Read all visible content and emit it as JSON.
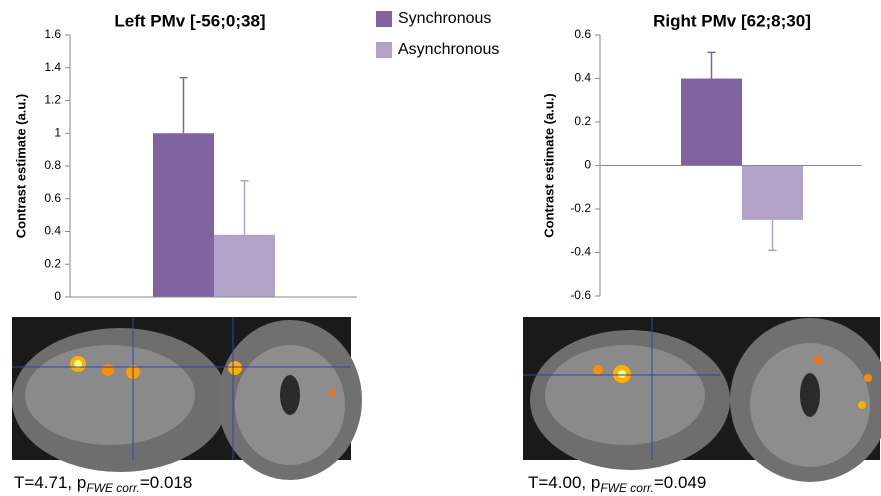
{
  "chart_data": [
    {
      "type": "bar",
      "title": "Left PMv [-56;0;38]",
      "y_label": "Contrast estimate (a.u.)",
      "series": [
        {
          "name": "Synchronous",
          "color": "#8064a2",
          "values": [
            1.0
          ],
          "errors": [
            0.34
          ]
        },
        {
          "name": "Asynchronous",
          "color": "#b3a2c7",
          "values": [
            0.38
          ],
          "errors": [
            0.33
          ]
        }
      ],
      "ylim": [
        0,
        1.6
      ],
      "yticks": [
        0,
        0.2,
        0.4,
        0.6,
        0.8,
        1,
        1.2,
        1.4,
        1.6
      ],
      "annotation": {
        "text": "T=4.71, p",
        "sub": "FWE corr.",
        "rest": "=0.018"
      }
    },
    {
      "type": "bar",
      "title": "Right PMv [62;8;30]",
      "y_label": "Contrast estimate (a.u.)",
      "series": [
        {
          "name": "Synchronous",
          "color": "#8064a2",
          "values": [
            0.4
          ],
          "errors": [
            0.12
          ]
        },
        {
          "name": "Asynchronous",
          "color": "#b3a2c7",
          "values": [
            -0.25
          ],
          "errors": [
            0.14
          ]
        }
      ],
      "ylim": [
        -0.6,
        0.6
      ],
      "yticks": [
        -0.6,
        -0.4,
        -0.2,
        0,
        0.2,
        0.4,
        0.6
      ],
      "annotation": {
        "text": "T=4.00, p",
        "sub": "FWE corr.",
        "rest": "=0.049"
      }
    }
  ]
}
